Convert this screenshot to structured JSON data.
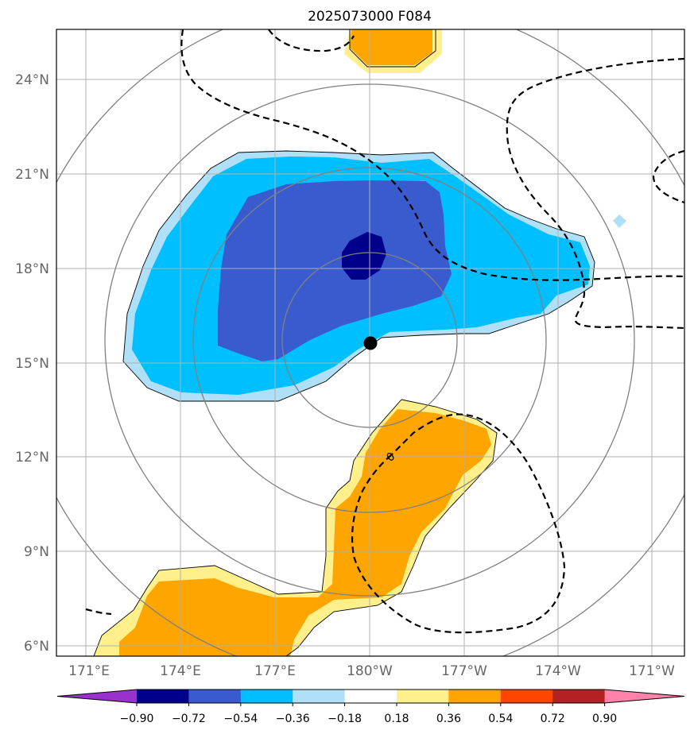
{
  "title": "2025073000 F084",
  "latitude_labels": [
    "24°N",
    "21°N",
    "18°N",
    "15°N",
    "12°N",
    "9°N",
    "6°N"
  ],
  "longitude_labels": [
    "171°E",
    "174°E",
    "177°E",
    "180°W",
    "177°W",
    "174°W",
    "171°W"
  ],
  "contour_label": "0",
  "colorbar": {
    "tick_labels": [
      "−0.90",
      "−0.72",
      "−0.54",
      "−0.36",
      "−0.18",
      "0.18",
      "0.36",
      "0.54",
      "0.72",
      "0.90"
    ],
    "colors": [
      "#9932cc",
      "#00008b",
      "#3a5bcd",
      "#00bfff",
      "#b0e0f8",
      "#ffffff",
      "#fff08c",
      "#ffa500",
      "#ff4500",
      "#b22222",
      "#ff82ab"
    ]
  },
  "fill_colors": {
    "level_neg_0_18": "#b0e0f8",
    "level_neg_0_36": "#00bfff",
    "level_neg_0_54": "#3a5bcd",
    "level_neg_0_72": "#00008b",
    "level_pos_0_18": "#fff08c",
    "level_pos_0_36": "#ffa500"
  },
  "center_marker": {
    "lat": 15.6,
    "lon": 180.0
  }
}
